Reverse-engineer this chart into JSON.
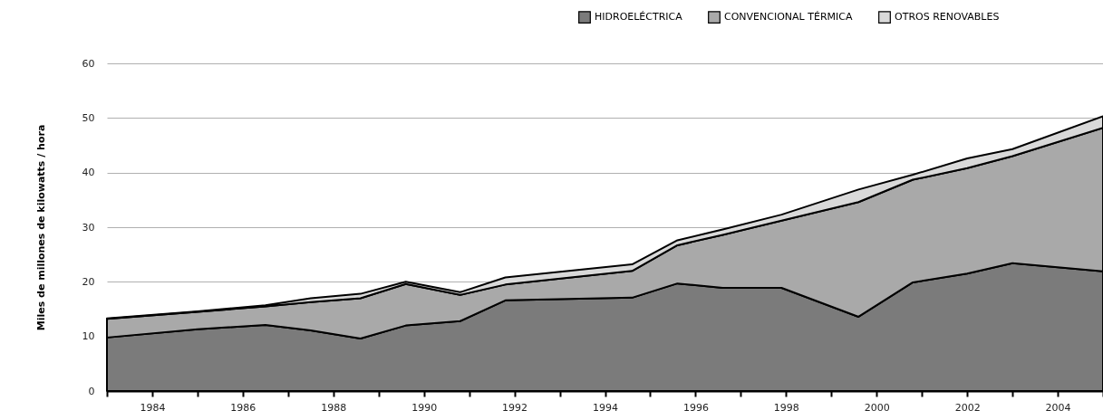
{
  "chart_data": {
    "type": "area",
    "stacked": true,
    "ylabel": "Miles de millones de kilowatts / hora",
    "x": [
      1983,
      1985,
      1986.5,
      1987.5,
      1988.6,
      1989.6,
      1990.8,
      1991.8,
      1994.6,
      1995.6,
      1996.6,
      1997.9,
      1999.6,
      2000.8,
      2002,
      2003,
      2005
    ],
    "series": [
      {
        "name": "HIDROELÉCTRICA",
        "color": "#7b7b7b",
        "values": [
          9.8,
          11.3,
          12.1,
          11.1,
          9.6,
          12.0,
          12.8,
          16.6,
          17.1,
          19.7,
          18.9,
          18.9,
          13.6,
          19.9,
          21.5,
          23.4,
          21.9
        ]
      },
      {
        "name": "CONVENCIONAL TÉRMICA",
        "color": "#a9a9a9",
        "values": [
          3.4,
          3.2,
          3.4,
          5.2,
          7.4,
          7.6,
          4.8,
          2.9,
          4.9,
          7.0,
          9.7,
          12.3,
          21.0,
          18.8,
          19.3,
          19.6,
          26.3
        ]
      },
      {
        "name": "OTROS RENOVABLES",
        "color": "#d9d9d9",
        "values": [
          0.1,
          0.1,
          0.2,
          0.7,
          0.8,
          0.4,
          0.5,
          1.3,
          1.2,
          0.9,
          1.0,
          1.1,
          2.3,
          0.9,
          1.8,
          1.3,
          2.1
        ]
      }
    ],
    "xlim": [
      1983,
      2005
    ],
    "xticks": [
      {
        "value": 1983,
        "label": null
      },
      1984,
      {
        "value": 1985,
        "label": null
      },
      1986,
      {
        "value": 1987,
        "label": null
      },
      1988,
      {
        "value": 1989,
        "label": null
      },
      1990,
      {
        "value": 1991,
        "label": null
      },
      1992,
      {
        "value": 1993,
        "label": null
      },
      1994,
      {
        "value": 1995,
        "label": null
      },
      1996,
      {
        "value": 1997,
        "label": null
      },
      1998,
      {
        "value": 1999,
        "label": null
      },
      2000,
      {
        "value": 2001,
        "label": null
      },
      2002,
      {
        "value": 2003,
        "label": null
      },
      2004,
      {
        "value": 2005,
        "label": null
      }
    ],
    "ylim": [
      0,
      60
    ],
    "yticks": [
      0,
      10,
      20,
      30,
      40,
      50,
      60
    ],
    "grid": "y",
    "legend": "top right"
  }
}
